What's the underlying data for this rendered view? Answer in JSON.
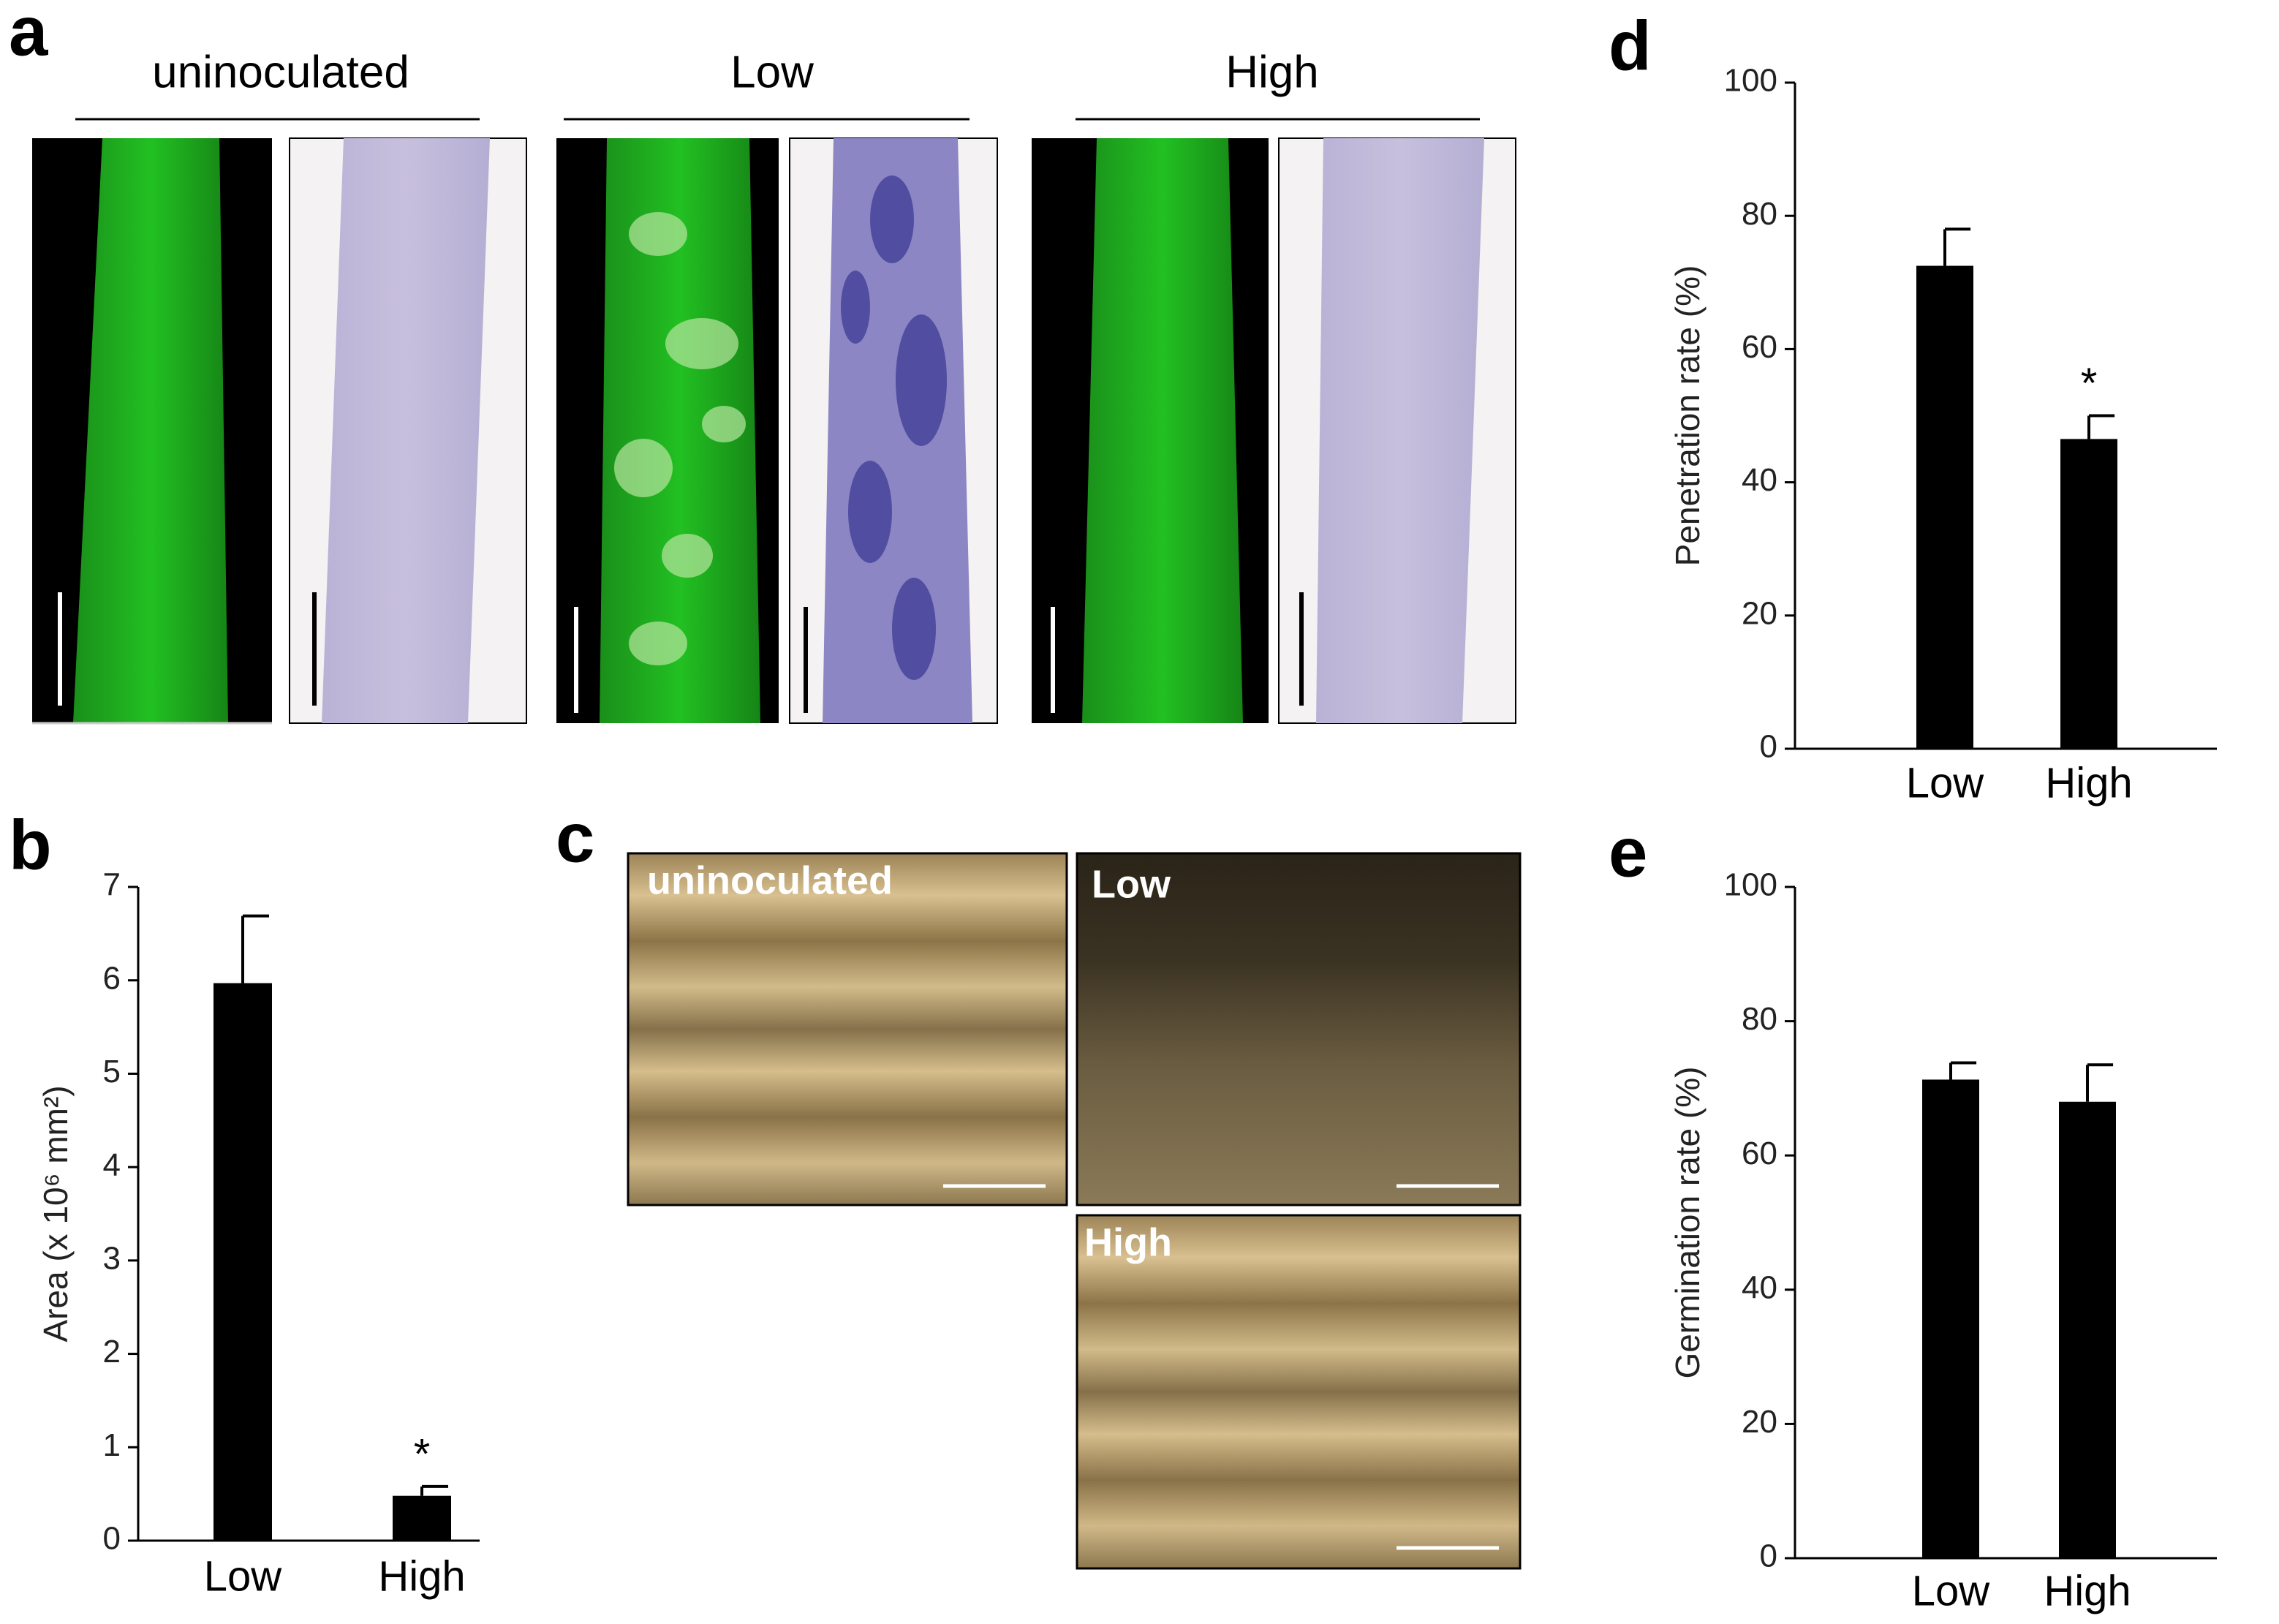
{
  "panel_labels": [
    "a",
    "b",
    "c",
    "d",
    "e"
  ],
  "panel_a": {
    "groups": [
      "uninoculated",
      "Low",
      "High"
    ]
  },
  "panel_c": {
    "labels": [
      "uninoculated",
      "Low",
      "High"
    ]
  },
  "chart_data": [
    {
      "type": "bar",
      "y_label": "Area (x 10⁶ mm²)",
      "categories": [
        "Low",
        "High"
      ],
      "values": [
        5.97,
        0.48
      ],
      "errors": [
        0.72,
        0.1
      ],
      "color": "#000000",
      "ylim": [
        0,
        7
      ],
      "yticks": [
        0,
        1,
        2,
        3,
        4,
        5,
        6,
        7
      ],
      "grid": false,
      "annotations": [
        {
          "category": "High",
          "text": "*"
        }
      ]
    },
    {
      "type": "bar",
      "y_label": "Penetration rate (%)",
      "categories": [
        "Low",
        "High"
      ],
      "values": [
        72.5,
        46.5
      ],
      "errors": [
        5.5,
        3.5
      ],
      "color": "#000000",
      "ylim": [
        0,
        100
      ],
      "yticks": [
        0,
        20,
        40,
        60,
        80,
        100
      ],
      "grid": false,
      "annotations": [
        {
          "category": "High",
          "text": "*"
        }
      ]
    },
    {
      "type": "bar",
      "y_label": "Germination rate (%)",
      "categories": [
        "Low",
        "High"
      ],
      "values": [
        71.3,
        68
      ],
      "errors": [
        2.5,
        5.5
      ],
      "color": "#000000",
      "ylim": [
        0,
        100
      ],
      "yticks": [
        0,
        20,
        40,
        60,
        80,
        100
      ],
      "grid": false
    }
  ]
}
